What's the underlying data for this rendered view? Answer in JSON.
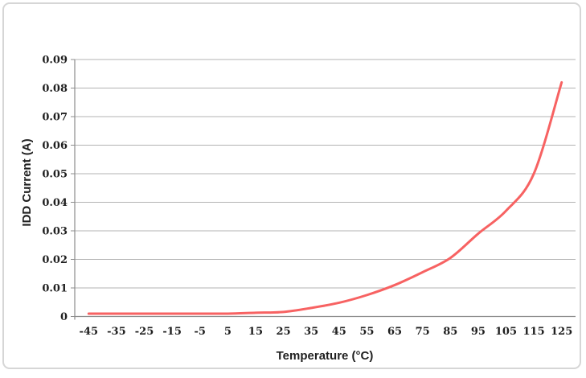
{
  "chart_data": {
    "type": "line",
    "smooth": true,
    "xlabel": "Temperature (°C)",
    "ylabel": "IDD Current (A)",
    "categories": [
      "-45",
      "-35",
      "-25",
      "-15",
      "-5",
      "5",
      "15",
      "25",
      "35",
      "45",
      "55",
      "65",
      "75",
      "85",
      "95",
      "105",
      "115",
      "125"
    ],
    "series": [
      {
        "name": "IDD Current",
        "color": "#f76262",
        "values": [
          0.001,
          0.001,
          0.001,
          0.001,
          0.001,
          0.001,
          0.0013,
          0.0016,
          0.003,
          0.0048,
          0.0075,
          0.011,
          0.0155,
          0.0205,
          0.029,
          0.037,
          0.05,
          0.082
        ]
      }
    ],
    "ylim": [
      0,
      0.09
    ],
    "y_ticks": {
      "values": [
        0,
        0.01,
        0.02,
        0.03,
        0.04,
        0.05,
        0.06,
        0.07,
        0.08,
        0.09
      ],
      "labels": [
        "0",
        "0.01",
        "0.02",
        "0.03",
        "0.04",
        "0.05",
        "0.06",
        "0.07",
        "0.08",
        "0.09"
      ]
    },
    "grid": "horizontal",
    "legend": "none"
  },
  "colors": {
    "line": "#f76262",
    "gridline": "#b3b3b3",
    "axis": "#8c8c8c",
    "text": "#1f1f1f",
    "frame_border": "#d6d6d6",
    "background": "#ffffff"
  }
}
